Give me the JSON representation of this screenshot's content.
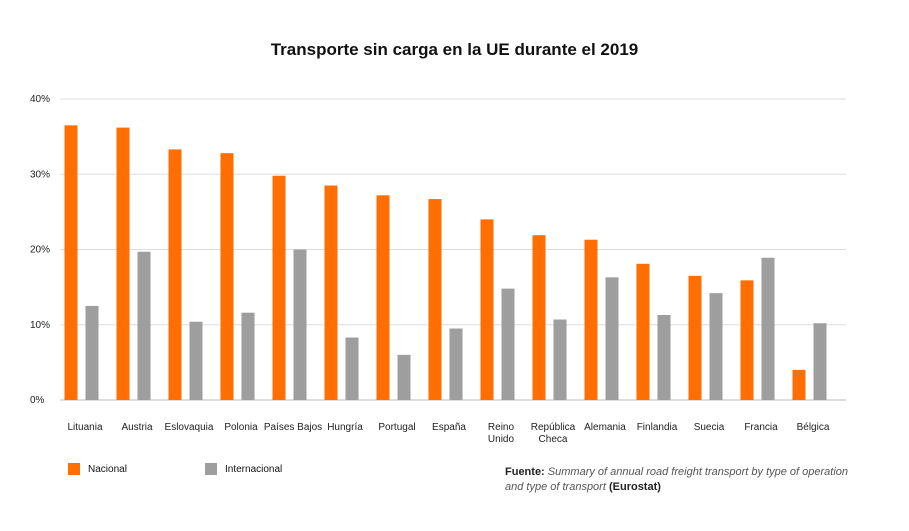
{
  "colors": {
    "nacional": "#FF6E00",
    "internacional": "#9E9E9E",
    "grid": "#dddddd",
    "axis": "#bbbbbb"
  },
  "chart_data": {
    "type": "bar",
    "title": "Transporte sin carga en la UE durante el 2019",
    "categories": [
      "Lituania",
      "Austria",
      "Eslovaquia",
      "Polonia",
      "Países Bajos",
      "Hungría",
      "Portugal",
      "España",
      "Reino Unido",
      "República Checa",
      "Alemania",
      "Finlandia",
      "Suecia",
      "Francia",
      "Bélgica"
    ],
    "category_lines": [
      [
        "Lituania"
      ],
      [
        "Austria"
      ],
      [
        "Eslovaquia"
      ],
      [
        "Polonia"
      ],
      [
        "Países Bajos"
      ],
      [
        "Hungría"
      ],
      [
        "Portugal"
      ],
      [
        "España"
      ],
      [
        "Reino",
        "Unido"
      ],
      [
        "República",
        "Checa"
      ],
      [
        "Alemania"
      ],
      [
        "Finlandia"
      ],
      [
        "Suecia"
      ],
      [
        "Francia"
      ],
      [
        "Bélgica"
      ]
    ],
    "series": [
      {
        "name": "Nacional",
        "values": [
          36.5,
          36.2,
          33.3,
          32.8,
          29.8,
          28.5,
          27.2,
          26.7,
          24.0,
          21.9,
          21.3,
          18.1,
          16.5,
          15.9,
          4.0
        ]
      },
      {
        "name": "Internacional",
        "values": [
          12.5,
          19.7,
          10.4,
          11.6,
          20.0,
          8.3,
          6.0,
          9.5,
          14.8,
          10.7,
          16.3,
          11.3,
          14.2,
          18.9,
          10.2
        ]
      }
    ],
    "ylim": [
      0,
      40
    ],
    "yticks": [
      "0%",
      "10%",
      "20%",
      "30%",
      "40%"
    ],
    "ytick_values": [
      0,
      10,
      20,
      30,
      40
    ],
    "xlabel": "",
    "ylabel": "",
    "grid": true,
    "legend": "bottom-left"
  },
  "source": {
    "label": "Fuente:",
    "text": "Summary of annual road freight transport by type of operation and type of transport",
    "org": "(Eurostat)"
  }
}
